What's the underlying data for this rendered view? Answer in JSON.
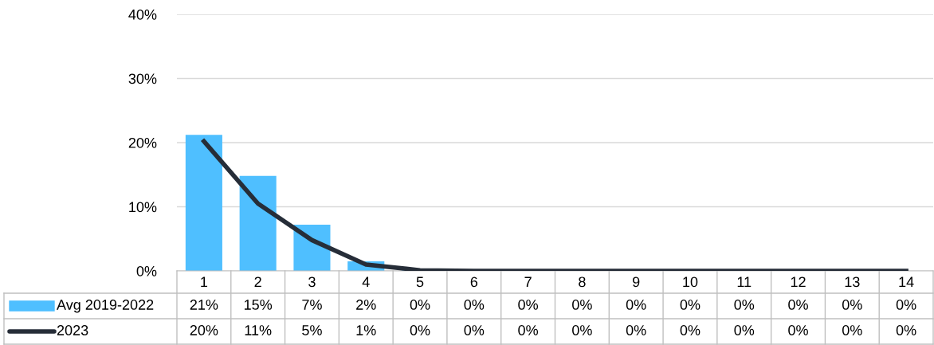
{
  "chart_data": {
    "type": "bar",
    "categories": [
      "1",
      "2",
      "3",
      "4",
      "5",
      "6",
      "7",
      "8",
      "9",
      "10",
      "11",
      "12",
      "13",
      "14"
    ],
    "series": [
      {
        "name": "Avg 2019-2022",
        "color": "#4fbfff",
        "values": [
          21.2,
          14.8,
          7.2,
          1.5,
          0.1,
          0,
          0,
          0,
          0,
          0,
          0,
          0,
          0,
          0
        ],
        "value_labels": [
          "21%",
          "15%",
          "7%",
          "2%",
          "0%",
          "0%",
          "0%",
          "0%",
          "0%",
          "0%",
          "0%",
          "0%",
          "0%",
          "0%"
        ]
      },
      {
        "name": "2023",
        "type": "line",
        "color": "#262d38",
        "values": [
          20.2,
          10.5,
          4.8,
          1.0,
          0.1,
          0,
          0,
          0,
          0,
          0,
          0,
          0,
          0,
          0
        ],
        "value_labels": [
          "20%",
          "11%",
          "5%",
          "1%",
          "0%",
          "0%",
          "0%",
          "0%",
          "0%",
          "0%",
          "0%",
          "0%",
          "0%",
          "0%"
        ]
      }
    ],
    "ylim": [
      0,
      40
    ],
    "yticks": [
      {
        "value": 0,
        "label": "0%"
      },
      {
        "value": 10,
        "label": "10%"
      },
      {
        "value": 20,
        "label": "20%"
      },
      {
        "value": 30,
        "label": "30%"
      },
      {
        "value": 40,
        "label": "40%"
      }
    ],
    "grid": "y",
    "legend": "bottom",
    "marker": "none",
    "line_style": "solid"
  }
}
